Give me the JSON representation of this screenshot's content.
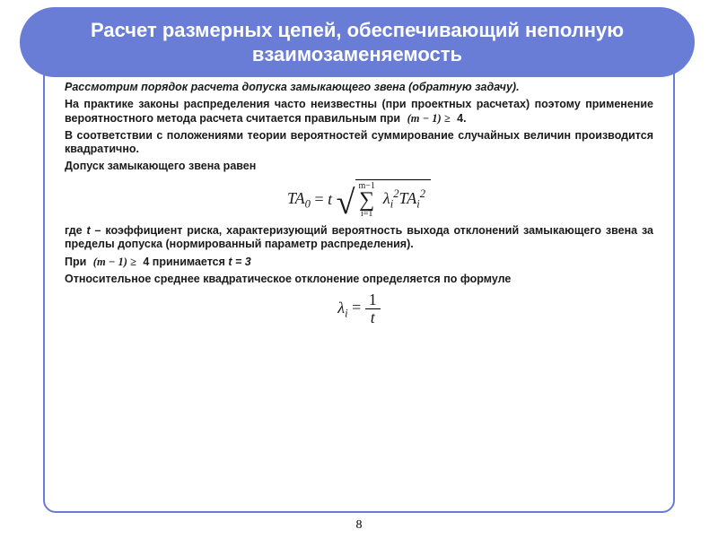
{
  "colors": {
    "accent": "#6a7dd6",
    "text": "#1a1a1a",
    "bg": "#ffffff"
  },
  "typography": {
    "body_font": "Arial",
    "body_size_pt": 10,
    "title_size_pt": 18,
    "formula_font": "Times New Roman"
  },
  "title": "Расчет размерных цепей, обеспечивающий неполную взаимозаменяемость",
  "p1": "Рассмотрим порядок расчета допуска замыкающего звена (обратную задачу).",
  "p2a": "На практике  законы распределения часто неизвестны (при проектных расчетах) поэтому применение вероятностного метода расчета считается правильным при ",
  "p2_math": "(m − 1) ≥",
  "p2b": "        4.",
  "p3": "В соответствии с положениями  теории вероятностей  суммирование случайных величин  производится квадратично.",
  "p4": "Допуск замыкающего звена равен",
  "formula1": {
    "lhs": "TA",
    "lhs_sub": "0",
    "eq": " = ",
    "t": "t",
    "sum_upper": "m−1",
    "sum_lower": "i=1",
    "lambda": "λ",
    "lambda_sub": "i",
    "lambda_sup": "2",
    "TA": "TA",
    "TA_sub": "i",
    "TA_sup": "2"
  },
  "p5a": "где ",
  "p5_t": "t",
  "p5b": " – коэффициент риска, характеризующий вероятность выхода отклонений замыкающего звена  за пределы допуска (нормированный параметр распределения).",
  "p6a": "При  ",
  "p6_math": "(m − 1) ≥",
  "p6b": "       4  принимается ",
  "p6_t": "t = 3",
  "p7": "Относительное среднее квадратическое отклонение  определяется по формуле",
  "formula2": {
    "lhs": "λ",
    "lhs_sub": "i",
    "eq": " = ",
    "num": "1",
    "den": "t"
  },
  "page_number": "8"
}
